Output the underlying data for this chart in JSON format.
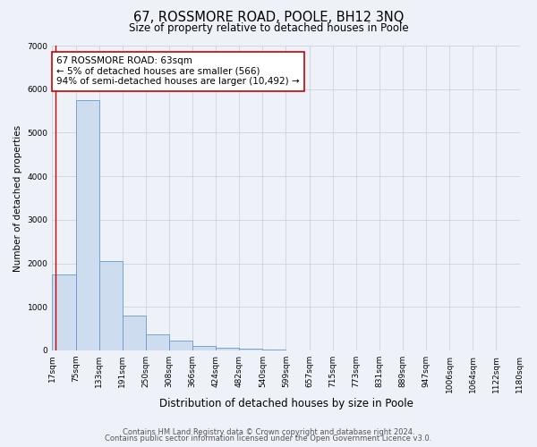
{
  "title": "67, ROSSMORE ROAD, POOLE, BH12 3NQ",
  "subtitle": "Size of property relative to detached houses in Poole",
  "xlabel": "Distribution of detached houses by size in Poole",
  "ylabel": "Number of detached properties",
  "bar_values": [
    1750,
    5750,
    2050,
    800,
    370,
    230,
    100,
    60,
    30,
    10,
    5,
    0,
    0,
    0,
    0,
    0,
    0,
    0,
    0,
    0
  ],
  "tick_labels": [
    "17sqm",
    "75sqm",
    "133sqm",
    "191sqm",
    "250sqm",
    "308sqm",
    "366sqm",
    "424sqm",
    "482sqm",
    "540sqm",
    "599sqm",
    "657sqm",
    "715sqm",
    "773sqm",
    "831sqm",
    "889sqm",
    "947sqm",
    "1006sqm",
    "1064sqm",
    "1122sqm",
    "1180sqm"
  ],
  "bar_color": "#cddcee",
  "bar_edge_color": "#6699cc",
  "property_line_color": "#cc0000",
  "property_bar_index": 0,
  "annotation_line1": "67 ROSSMORE ROAD: 63sqm",
  "annotation_line2": "← 5% of detached houses are smaller (566)",
  "annotation_line3": "94% of semi-detached houses are larger (10,492) →",
  "annotation_box_facecolor": "#ffffff",
  "annotation_box_edgecolor": "#cc0000",
  "ylim": [
    0,
    7000
  ],
  "yticks": [
    0,
    1000,
    2000,
    3000,
    4000,
    5000,
    6000,
    7000
  ],
  "background_color": "#eef2f8",
  "grid_color": "#c8ccd8",
  "footer_line1": "Contains HM Land Registry data © Crown copyright and database right 2024.",
  "footer_line2": "Contains public sector information licensed under the Open Government Licence v3.0.",
  "title_fontsize": 10.5,
  "subtitle_fontsize": 8.5,
  "xlabel_fontsize": 8.5,
  "ylabel_fontsize": 7.5,
  "tick_fontsize": 6.5,
  "annotation_fontsize": 7.5,
  "footer_fontsize": 6.0
}
